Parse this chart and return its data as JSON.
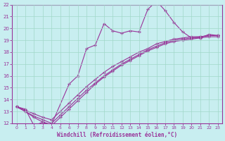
{
  "xlabel": "Windchill (Refroidissement éolien,°C)",
  "bg_color": "#c8eef0",
  "grid_color": "#a0d8c8",
  "line_color": "#993399",
  "xmin": 0,
  "xmax": 23,
  "ymin": 12,
  "ymax": 22,
  "series1_x": [
    0,
    1,
    2,
    3,
    4,
    6,
    7,
    8,
    9,
    10,
    11,
    12,
    13,
    14,
    15,
    16,
    17,
    18,
    19,
    20,
    21,
    22,
    23
  ],
  "series1_y": [
    13.4,
    13.2,
    11.8,
    12.1,
    11.9,
    15.3,
    16.0,
    18.3,
    18.6,
    20.4,
    19.8,
    19.6,
    19.8,
    19.7,
    21.6,
    22.3,
    21.5,
    20.5,
    19.7,
    19.2,
    19.2,
    19.5,
    19.4
  ],
  "series2_x": [
    0,
    1,
    2,
    3,
    4,
    5,
    6,
    7,
    8,
    9,
    10,
    11,
    12,
    13,
    14,
    15,
    16,
    17,
    18,
    19,
    20,
    21,
    22,
    23
  ],
  "series2_y": [
    13.4,
    13.1,
    12.8,
    12.5,
    12.3,
    13.0,
    13.7,
    14.4,
    15.1,
    15.7,
    16.3,
    16.8,
    17.2,
    17.6,
    18.0,
    18.3,
    18.7,
    18.9,
    19.1,
    19.2,
    19.3,
    19.3,
    19.4,
    19.4
  ],
  "series3_x": [
    0,
    1,
    2,
    3,
    4,
    5,
    6,
    7,
    8,
    9,
    10,
    11,
    12,
    13,
    14,
    15,
    16,
    17,
    18,
    19,
    20,
    21,
    22,
    23
  ],
  "series3_y": [
    13.4,
    13.0,
    12.6,
    12.3,
    12.0,
    12.7,
    13.4,
    14.1,
    14.8,
    15.4,
    16.0,
    16.5,
    17.0,
    17.4,
    17.8,
    18.2,
    18.5,
    18.8,
    19.0,
    19.1,
    19.2,
    19.3,
    19.4,
    19.4
  ],
  "series4_x": [
    0,
    1,
    2,
    3,
    4,
    5,
    6,
    7,
    8,
    9,
    10,
    11,
    12,
    13,
    14,
    15,
    16,
    17,
    18,
    19,
    20,
    21,
    22,
    23
  ],
  "series4_y": [
    13.4,
    13.0,
    12.5,
    12.1,
    11.8,
    12.5,
    13.2,
    13.9,
    14.6,
    15.3,
    15.9,
    16.4,
    16.9,
    17.3,
    17.7,
    18.1,
    18.4,
    18.7,
    18.9,
    19.0,
    19.1,
    19.2,
    19.3,
    19.3
  ],
  "yticks": [
    12,
    13,
    14,
    15,
    16,
    17,
    18,
    19,
    20,
    21,
    22
  ],
  "xticks": [
    0,
    1,
    2,
    3,
    4,
    5,
    6,
    7,
    8,
    9,
    10,
    11,
    12,
    13,
    14,
    15,
    16,
    17,
    18,
    19,
    20,
    21,
    22,
    23
  ]
}
